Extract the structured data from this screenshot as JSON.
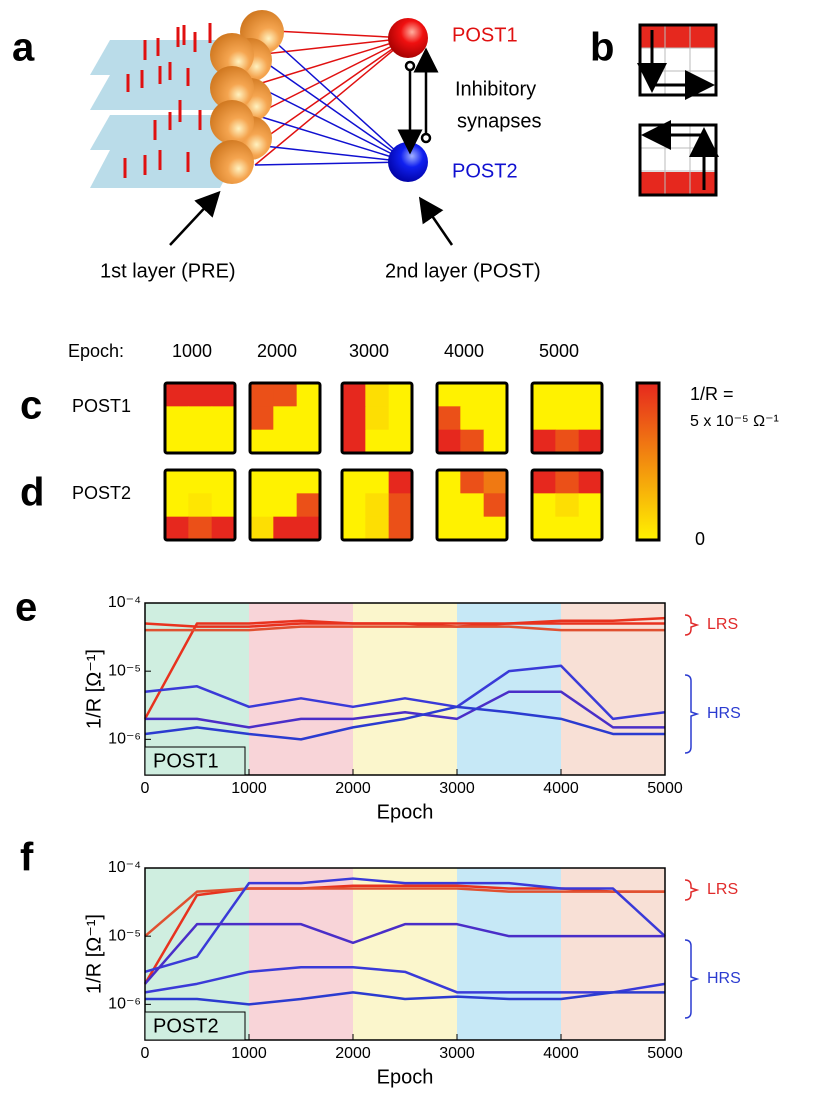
{
  "panel_labels": {
    "a": "a",
    "b": "b",
    "c": "c",
    "d": "d",
    "e": "e",
    "f": "f"
  },
  "panel_a": {
    "post1": "POST1",
    "post2": "POST2",
    "inhibitory": [
      "Inhibitory",
      "synapses"
    ],
    "pre_label": "1st layer (PRE)",
    "post_label": "2nd layer (POST)"
  },
  "heatmaps": {
    "epoch_label": "Epoch:",
    "epochs": [
      "1000",
      "2000",
      "3000",
      "4000",
      "5000"
    ],
    "rows": [
      {
        "label": "POST1",
        "maps": [
          [
            [
              5e-05,
              5e-05,
              5e-05
            ],
            [
              0,
              0,
              0
            ],
            [
              0,
              0,
              0
            ]
          ],
          [
            [
              4e-05,
              4e-05,
              0
            ],
            [
              4e-05,
              0,
              0
            ],
            [
              0,
              0,
              0
            ]
          ],
          [
            [
              5e-05,
              5e-06,
              0
            ],
            [
              5e-05,
              5e-06,
              0
            ],
            [
              5e-05,
              0,
              0
            ]
          ],
          [
            [
              0,
              0,
              0
            ],
            [
              4e-05,
              0,
              0
            ],
            [
              5e-05,
              4e-05,
              0
            ]
          ],
          [
            [
              0,
              0,
              0
            ],
            [
              0,
              0,
              0
            ],
            [
              5e-05,
              4e-05,
              5e-05
            ]
          ]
        ]
      },
      {
        "label": "POST2",
        "maps": [
          [
            [
              0,
              0,
              0
            ],
            [
              0,
              3e-06,
              0
            ],
            [
              5e-05,
              4e-05,
              5e-05
            ]
          ],
          [
            [
              0,
              0,
              0
            ],
            [
              0,
              0,
              4e-05
            ],
            [
              5e-06,
              5e-05,
              5e-05
            ]
          ],
          [
            [
              0,
              0,
              5e-05
            ],
            [
              0,
              5e-06,
              4e-05
            ],
            [
              0,
              5e-06,
              4e-05
            ]
          ],
          [
            [
              0,
              4e-05,
              3e-05
            ],
            [
              0,
              0,
              4e-05
            ],
            [
              0,
              0,
              0
            ]
          ],
          [
            [
              5e-05,
              4e-05,
              5e-05
            ],
            [
              0,
              5e-06,
              0
            ],
            [
              0,
              0,
              0
            ]
          ]
        ]
      }
    ],
    "colorbar": {
      "label": "1/R =",
      "max": 5e-05,
      "max_label": "5 x 10⁻⁵ Ω⁻¹",
      "min": 0,
      "min_label": "0"
    }
  },
  "chart_data": [
    {
      "type": "line",
      "panel_name": "POST1",
      "xlabel": "Epoch",
      "ylabel": "1/R [Ω⁻¹]",
      "log_y": true,
      "x": [
        0,
        500,
        1000,
        1500,
        2000,
        2500,
        3000,
        3500,
        4000,
        4500,
        5000
      ],
      "xlim": [
        0,
        5000
      ],
      "xticks": [
        0,
        1000,
        2000,
        3000,
        4000,
        5000
      ],
      "ylim": [
        3e-07,
        0.0001
      ],
      "yticks": [
        {
          "value": 1e-06,
          "label": "10⁻⁶"
        },
        {
          "value": 1e-05,
          "label": "10⁻⁵"
        },
        {
          "value": 0.0001,
          "label": "10⁻⁴"
        }
      ],
      "band_colors": [
        "#cfeee0",
        "#f8d4d8",
        "#fbf6cc",
        "#c6e8f6",
        "#f8e0d6"
      ],
      "annotations": [
        {
          "text": "LRS",
          "color": "#e02a2a"
        },
        {
          "text": "HRS",
          "color": "#2b3bd0"
        }
      ],
      "series": [
        {
          "color": "#e8321e",
          "values": [
            2e-06,
            5e-05,
            5e-05,
            5.5e-05,
            5e-05,
            5e-05,
            5e-05,
            5e-05,
            5.5e-05,
            5.5e-05,
            6e-05
          ]
        },
        {
          "color": "#e8321e",
          "values": [
            5e-05,
            4.5e-05,
            4.5e-05,
            5e-05,
            5e-05,
            5e-05,
            4.5e-05,
            5e-05,
            5e-05,
            5e-05,
            5e-05
          ]
        },
        {
          "color": "#e05030",
          "values": [
            4e-05,
            4e-05,
            4e-05,
            4.5e-05,
            4.5e-05,
            4.5e-05,
            4.5e-05,
            4.5e-05,
            4e-05,
            4e-05,
            4e-05
          ]
        },
        {
          "color": "#3a3ad8",
          "values": [
            5e-06,
            6e-06,
            3e-06,
            4e-06,
            3e-06,
            4e-06,
            3e-06,
            1e-05,
            1.2e-05,
            2e-06,
            2.5e-06
          ]
        },
        {
          "color": "#4a2ec8",
          "values": [
            2e-06,
            2e-06,
            1.5e-06,
            2e-06,
            2e-06,
            2.5e-06,
            2e-06,
            5e-06,
            5e-06,
            1.5e-06,
            1.5e-06
          ]
        },
        {
          "color": "#2b3bd0",
          "values": [
            1.2e-06,
            1.5e-06,
            1.2e-06,
            1e-06,
            1.5e-06,
            2e-06,
            3e-06,
            2.5e-06,
            2e-06,
            1.2e-06,
            1.2e-06
          ]
        }
      ]
    },
    {
      "type": "line",
      "panel_name": "POST2",
      "xlabel": "Epoch",
      "ylabel": "1/R [Ω⁻¹]",
      "log_y": true,
      "x": [
        0,
        500,
        1000,
        1500,
        2000,
        2500,
        3000,
        3500,
        4000,
        4500,
        5000
      ],
      "xlim": [
        0,
        5000
      ],
      "xticks": [
        0,
        1000,
        2000,
        3000,
        4000,
        5000
      ],
      "ylim": [
        3e-07,
        0.0001
      ],
      "yticks": [
        {
          "value": 1e-06,
          "label": "10⁻⁶"
        },
        {
          "value": 1e-05,
          "label": "10⁻⁵"
        },
        {
          "value": 0.0001,
          "label": "10⁻⁴"
        }
      ],
      "band_colors": [
        "#cfeee0",
        "#f8d4d8",
        "#fbf6cc",
        "#c6e8f6",
        "#f8e0d6"
      ],
      "annotations": [
        {
          "text": "LRS",
          "color": "#e02a2a"
        },
        {
          "text": "HRS",
          "color": "#2b3bd0"
        }
      ],
      "series": [
        {
          "color": "#e8321e",
          "values": [
            2e-06,
            4e-05,
            5e-05,
            5e-05,
            5.5e-05,
            5.5e-05,
            5.5e-05,
            5e-05,
            5e-05,
            4.5e-05,
            4.5e-05
          ]
        },
        {
          "color": "#e05030",
          "values": [
            1e-05,
            4.5e-05,
            5e-05,
            5e-05,
            5e-05,
            5e-05,
            5e-05,
            4.5e-05,
            4.5e-05,
            4.5e-05,
            4.5e-05
          ]
        },
        {
          "color": "#3a3ad8",
          "values": [
            3e-06,
            5e-06,
            6e-05,
            6e-05,
            7e-05,
            6e-05,
            6e-05,
            6e-05,
            5e-05,
            5e-05,
            1e-05
          ]
        },
        {
          "color": "#4a2ec8",
          "values": [
            2e-06,
            1.5e-05,
            1.5e-05,
            1.5e-05,
            8e-06,
            1.5e-05,
            1.5e-05,
            1e-05,
            1e-05,
            1e-05,
            1e-05
          ]
        },
        {
          "color": "#3a3ad8",
          "values": [
            1.5e-06,
            2e-06,
            3e-06,
            3.5e-06,
            3.5e-06,
            3e-06,
            1.5e-06,
            1.5e-06,
            1.5e-06,
            1.5e-06,
            2e-06
          ]
        },
        {
          "color": "#2b3bd0",
          "values": [
            1.2e-06,
            1.2e-06,
            1e-06,
            1.2e-06,
            1.5e-06,
            1.2e-06,
            1.3e-06,
            1.2e-06,
            1.2e-06,
            1.5e-06,
            1.5e-06
          ]
        }
      ]
    }
  ]
}
